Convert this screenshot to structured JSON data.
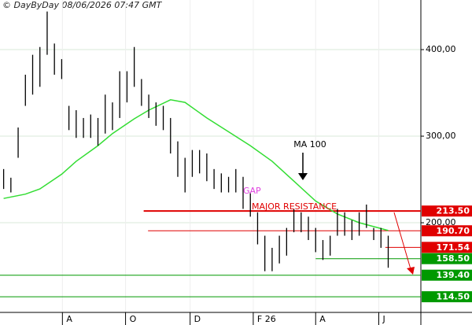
{
  "chart_data": {
    "type": "ohlc",
    "title": "© DayByDay 08/06/2026 07:47 GMT",
    "x": [
      0,
      1,
      2,
      3,
      4,
      5,
      6,
      7,
      8,
      9,
      10,
      11,
      12,
      13,
      14,
      15,
      16,
      17,
      18,
      19,
      20,
      21,
      22,
      23,
      24,
      25,
      26,
      27,
      28,
      29,
      30,
      31,
      32,
      33,
      34,
      35,
      36,
      37,
      38,
      39,
      40,
      41,
      42,
      43,
      44,
      45,
      46,
      47,
      48,
      49,
      50,
      51,
      52,
      53
    ],
    "high": [
      262,
      252,
      310,
      371,
      394,
      403,
      444,
      407,
      389,
      335,
      330,
      321,
      325,
      321,
      348,
      339,
      375,
      375,
      403,
      366,
      348,
      339,
      335,
      321,
      294,
      275,
      284,
      284,
      280,
      262,
      257,
      253,
      262,
      253,
      235,
      212,
      185,
      171,
      185,
      194,
      216,
      212,
      207,
      194,
      180,
      185,
      216,
      212,
      203,
      212,
      221,
      194,
      194,
      185
    ],
    "low": [
      239,
      235,
      275,
      335,
      348,
      357,
      394,
      371,
      366,
      307,
      298,
      298,
      298,
      289,
      303,
      307,
      321,
      339,
      357,
      335,
      321,
      312,
      307,
      280,
      253,
      235,
      253,
      257,
      248,
      239,
      235,
      235,
      235,
      216,
      207,
      175,
      144,
      144,
      153,
      162,
      189,
      189,
      180,
      166,
      157,
      162,
      185,
      185,
      180,
      185,
      194,
      180,
      171,
      148
    ],
    "color": "#000000",
    "ma": {
      "name": "MA 100",
      "color": "#33dd33",
      "x": [
        0,
        3,
        5,
        8,
        10,
        13,
        15,
        18,
        20,
        23,
        25,
        28,
        31,
        34,
        37,
        40,
        43,
        46,
        49,
        53
      ],
      "values": [
        228,
        233,
        239,
        256,
        271,
        289,
        303,
        320,
        330,
        342,
        339,
        321,
        305,
        289,
        271,
        248,
        225,
        210,
        200,
        191
      ]
    },
    "levels": [
      {
        "value": 213.5,
        "label": "213.50",
        "color": "#e00000",
        "x_start": 19.3
      },
      {
        "value": 190.7,
        "label": "190.70",
        "color": "#e00000",
        "x_start": 19.9
      },
      {
        "value": 171.54,
        "label": "171.54",
        "color": "#e00000",
        "x_start": 52.6
      },
      {
        "value": 158.5,
        "label": "158.50",
        "color": "#009900",
        "x_start": 43
      },
      {
        "value": 139.4,
        "label": "139.40",
        "color": "#009900",
        "x_start": -0.5
      },
      {
        "value": 114.5,
        "label": "114.50",
        "color": "#009900",
        "x_start": -0.5
      }
    ],
    "annotations": [
      {
        "text": "GAP",
        "color": "#e040e0"
      },
      {
        "text": "MAJOR RESISTANCE",
        "color": "#e00000"
      }
    ],
    "xlim": [
      -0.5,
      57.5
    ],
    "ylim": [
      96.4,
      457.3
    ],
    "xticks": [
      {
        "value": 8.1,
        "label": "A"
      },
      {
        "value": 16.8,
        "label": "O"
      },
      {
        "value": 25.7,
        "label": "D"
      },
      {
        "value": 34.4,
        "label": "F 26"
      },
      {
        "value": 43,
        "label": "A"
      },
      {
        "value": 51.7,
        "label": "J"
      }
    ],
    "yticks": [
      {
        "value": 200,
        "label": "200,00"
      },
      {
        "value": 300,
        "label": "300,00"
      },
      {
        "value": 400,
        "label": "400,00"
      }
    ],
    "grid": true
  }
}
